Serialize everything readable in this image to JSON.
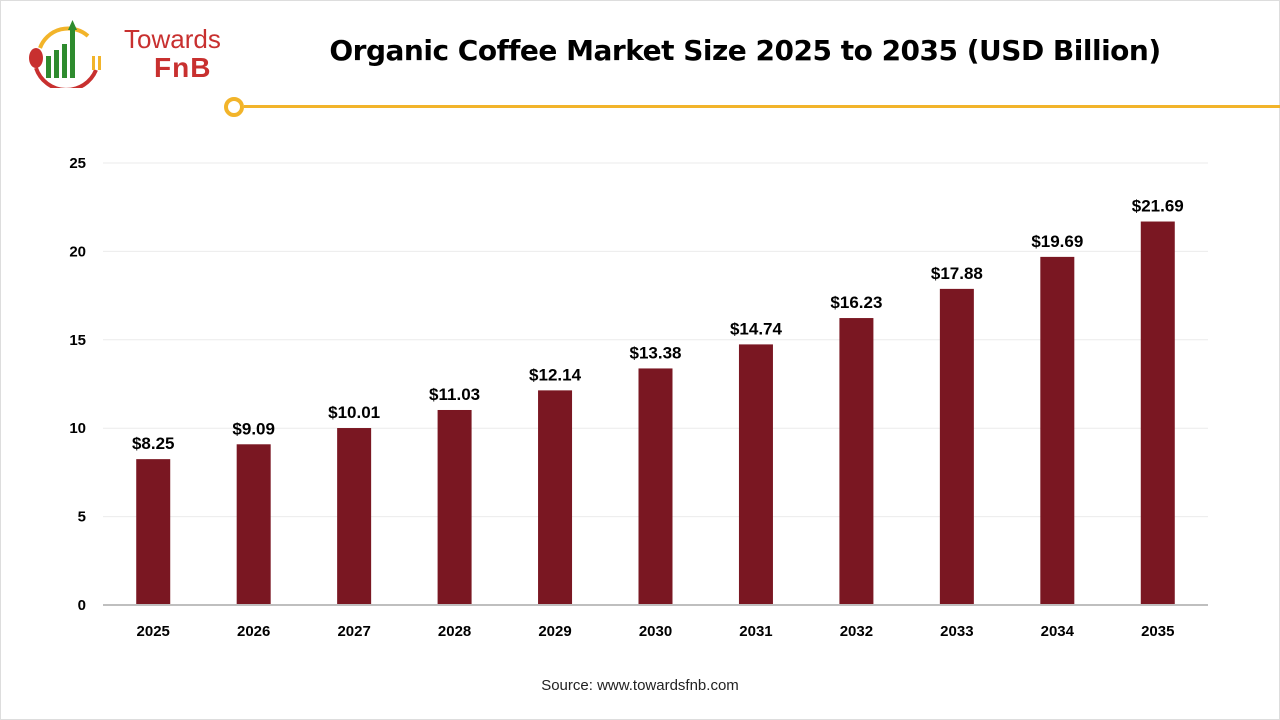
{
  "logo": {
    "line1": "Towards",
    "line2": "FnB"
  },
  "title": "Organic Coffee Market Size 2025 to 2035 (USD Billion)",
  "source": "Source: www.towardsfnb.com",
  "colors": {
    "bar": "#7a1722",
    "accent": "#f2b42a",
    "brand": "#c8302f"
  },
  "chart_data": {
    "type": "bar",
    "title": "Organic Coffee Market Size 2025 to 2035 (USD Billion)",
    "categories": [
      "2025",
      "2026",
      "2027",
      "2028",
      "2029",
      "2030",
      "2031",
      "2032",
      "2033",
      "2034",
      "2035"
    ],
    "values": [
      8.25,
      9.09,
      10.01,
      11.03,
      12.14,
      13.38,
      14.74,
      16.23,
      17.88,
      19.69,
      21.69
    ],
    "data_labels": [
      "$8.25",
      "$9.09",
      "$10.01",
      "$11.03",
      "$12.14",
      "$13.38",
      "$14.74",
      "$16.23",
      "$17.88",
      "$19.69",
      "$21.69"
    ],
    "yticks": [
      "0",
      "5",
      "10",
      "15",
      "20",
      "25"
    ],
    "ylim": [
      0,
      25
    ],
    "grid": true,
    "legend": "none"
  }
}
